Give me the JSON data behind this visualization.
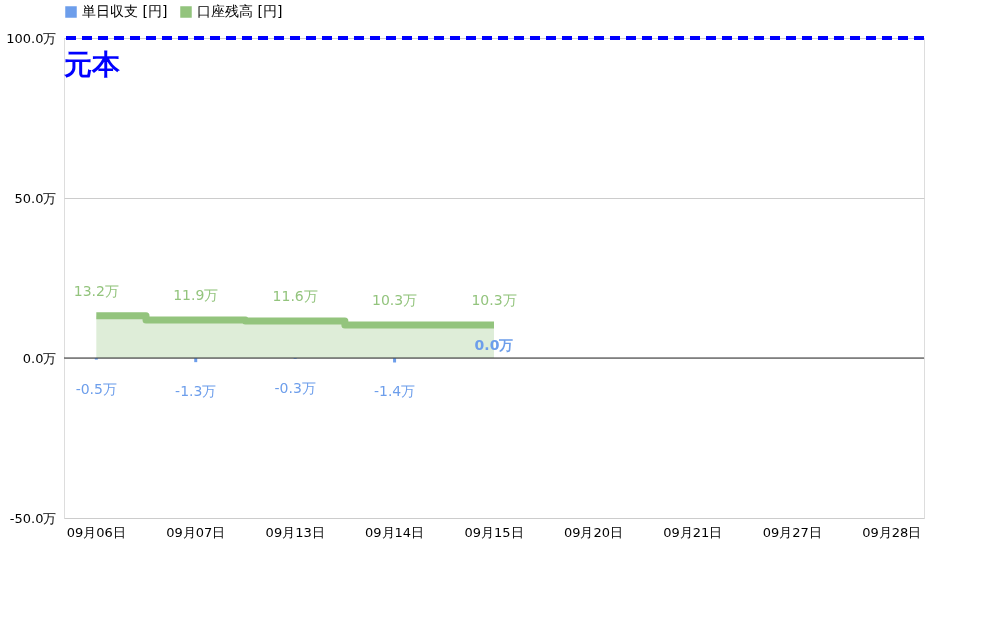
{
  "chart_data": {
    "type": "bar",
    "categories": [
      "09月06日",
      "09月07日",
      "09月13日",
      "09月14日",
      "09月15日",
      "09月20日",
      "09月21日",
      "09月27日",
      "09月28日"
    ],
    "series": [
      {
        "name": "単日収支 [円]",
        "color": "#6d9eeb",
        "values": [
          -0.5,
          -1.3,
          -0.3,
          -1.4,
          0.0,
          null,
          null,
          null,
          null
        ],
        "value_labels": [
          "-0.5万",
          "-1.3万",
          "-0.3万",
          "-1.4万",
          "0.0万",
          null,
          null,
          null,
          null
        ]
      },
      {
        "name": "口座残高 [円]",
        "type": "area",
        "color": "#93c47d",
        "values": [
          13.2,
          11.9,
          11.6,
          10.3,
          10.3,
          null,
          null,
          null,
          null
        ],
        "value_labels": [
          "13.2万",
          "11.9万",
          "11.6万",
          "10.3万",
          "10.3万",
          null,
          null,
          null,
          null
        ]
      }
    ],
    "ylim": [
      -50,
      100
    ],
    "yticks": [
      {
        "value": -50,
        "label": "-50.0万"
      },
      {
        "value": 0,
        "label": "0.0万"
      },
      {
        "value": 50,
        "label": "50.0万"
      },
      {
        "value": 100,
        "label": "100.0万"
      }
    ],
    "grid": "y",
    "legend": "top",
    "ref_lines": [
      {
        "axis": "y",
        "value": 100,
        "label": "元本",
        "color": "#0000ff",
        "line_style": "dashed"
      }
    ]
  }
}
